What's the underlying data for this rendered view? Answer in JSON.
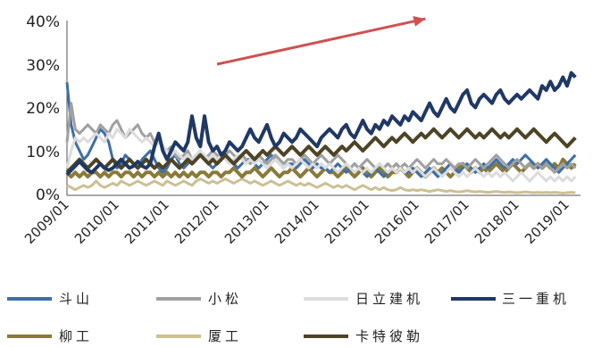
{
  "chart_data": {
    "type": "line",
    "title": "",
    "xlabel": "",
    "ylabel": "",
    "ylim": [
      0,
      40
    ],
    "y_ticks": [
      "0%",
      "10%",
      "20%",
      "30%",
      "40%"
    ],
    "x_ticks": [
      "2009/01",
      "2010/01",
      "2011/01",
      "2012/01",
      "2013/01",
      "2014/01",
      "2015/01",
      "2016/01",
      "2017/01",
      "2018/01",
      "2019/01"
    ],
    "x_range": [
      "2009-01",
      "2019-03"
    ],
    "grid": false,
    "legend_position": "bottom",
    "annotation": {
      "type": "arrow",
      "color": "#d05050",
      "from": [
        "2012-01",
        30
      ],
      "to": [
        "2016-03",
        40.5
      ]
    },
    "series": [
      {
        "name": "斗山",
        "color": "#3e6fa8",
        "width": 3,
        "values": [
          25.8,
          16,
          12,
          10,
          8,
          9,
          11,
          13,
          15,
          14,
          12,
          8,
          6,
          7,
          9,
          8,
          7,
          6,
          8,
          9,
          10,
          8,
          6,
          5,
          6,
          8,
          9,
          7,
          6,
          7,
          8,
          9,
          10,
          8,
          7,
          6,
          7,
          8,
          9,
          8,
          7,
          6,
          7,
          8,
          8,
          7,
          6,
          7,
          8,
          9,
          8,
          7,
          6,
          7,
          7,
          6,
          7,
          8,
          7,
          6,
          7,
          6,
          6,
          5,
          6,
          7,
          6,
          5,
          6,
          7,
          6,
          5,
          4,
          5,
          6,
          5,
          4,
          5,
          6,
          7,
          6,
          5,
          5,
          6,
          5,
          4,
          5,
          6,
          5,
          4,
          5,
          6,
          7,
          6,
          5,
          6,
          7,
          6,
          5,
          6,
          7,
          6,
          7,
          8,
          7,
          6,
          7,
          8,
          7,
          8,
          9,
          8,
          7,
          6,
          7,
          8,
          7,
          6,
          5,
          6,
          7,
          8,
          9
        ]
      },
      {
        "name": "小松",
        "color": "#a0a0a0",
        "width": 3,
        "values": [
          12,
          21,
          15,
          14,
          15,
          16,
          15,
          14,
          16,
          15,
          14,
          16,
          17,
          15,
          13,
          14,
          15,
          16,
          14,
          13,
          14,
          12,
          13,
          11,
          10,
          11,
          9,
          8,
          9,
          10,
          8,
          9,
          10,
          8,
          9,
          10,
          9,
          8,
          9,
          10,
          9,
          8,
          9,
          8,
          7,
          8,
          9,
          8,
          7,
          8,
          9,
          8,
          7,
          8,
          8,
          7,
          8,
          9,
          8,
          7,
          8,
          9,
          8,
          7,
          8,
          9,
          8,
          7,
          6,
          7,
          6,
          7,
          8,
          7,
          6,
          7,
          6,
          7,
          6,
          7,
          6,
          7,
          6,
          7,
          8,
          7,
          6,
          7,
          8,
          7,
          7,
          8,
          7,
          6,
          7,
          7,
          6,
          7,
          8,
          7,
          6,
          7,
          8,
          9,
          8,
          7,
          6,
          7,
          8,
          7,
          6,
          7,
          6,
          7,
          6,
          7,
          6,
          5,
          6,
          7,
          6,
          7,
          6
        ]
      },
      {
        "name": "日立建机",
        "color": "#dcdcdc",
        "width": 3,
        "values": [
          6,
          10,
          13,
          12,
          13,
          12,
          13,
          14,
          13,
          12,
          14,
          13,
          15,
          14,
          13,
          15,
          14,
          13,
          12,
          13,
          12,
          11,
          12,
          11,
          10,
          9,
          10,
          9,
          8,
          9,
          8,
          9,
          10,
          9,
          8,
          9,
          8,
          9,
          8,
          7,
          8,
          9,
          8,
          7,
          8,
          7,
          8,
          7,
          6,
          7,
          8,
          7,
          6,
          7,
          6,
          7,
          8,
          7,
          6,
          7,
          6,
          7,
          6,
          7,
          6,
          5,
          6,
          7,
          6,
          5,
          6,
          5,
          6,
          5,
          6,
          7,
          6,
          5,
          6,
          5,
          6,
          5,
          6,
          5,
          6,
          5,
          4,
          5,
          6,
          5,
          4,
          5,
          6,
          5,
          4,
          5,
          4,
          5,
          6,
          5,
          4,
          5,
          4,
          5,
          4,
          5,
          4,
          3,
          4,
          5,
          4,
          3,
          4,
          5,
          4,
          3,
          4,
          3,
          4,
          3,
          4,
          3,
          4
        ]
      },
      {
        "name": "三一重机",
        "color": "#1f3864",
        "width": 4,
        "values": [
          4.5,
          5.5,
          6.5,
          7.5,
          6.5,
          5.5,
          5,
          6,
          7,
          6,
          5.5,
          6,
          7,
          8,
          7,
          6,
          6.5,
          7.5,
          6.5,
          6,
          7,
          11,
          14,
          10,
          8,
          10,
          12,
          11,
          10,
          12,
          18,
          13,
          11,
          18,
          12,
          10,
          11,
          9,
          10,
          12,
          11,
          10,
          11,
          13,
          15,
          13,
          12,
          14,
          16,
          13,
          11,
          12,
          14,
          13,
          12,
          13,
          15,
          14,
          13,
          12,
          11,
          13,
          14,
          15,
          14,
          13,
          15,
          16,
          14,
          13,
          15,
          17,
          15,
          14,
          16,
          15,
          17,
          16,
          18,
          17,
          16,
          18,
          17,
          19,
          18,
          17,
          19,
          21,
          19,
          18,
          20,
          22,
          20,
          19,
          21,
          23,
          24,
          21,
          20,
          22,
          23,
          22,
          21,
          23,
          24,
          22,
          21,
          22,
          23,
          22,
          23,
          24,
          23,
          22,
          25,
          24,
          26,
          24,
          25,
          27,
          25,
          28,
          27
        ]
      },
      {
        "name": "柳工",
        "color": "#8a7a3a",
        "width": 4,
        "values": [
          5,
          4,
          5,
          4,
          5,
          4,
          5,
          5,
          4,
          5,
          4,
          5,
          5,
          4,
          5,
          5,
          4,
          5,
          4,
          5,
          5,
          4,
          5,
          4,
          5,
          4,
          5,
          4,
          5,
          4,
          5,
          4,
          5,
          5,
          4,
          5,
          5,
          4,
          5,
          5,
          6,
          5,
          4,
          5,
          5,
          6,
          5,
          4,
          5,
          6,
          5,
          4,
          5,
          5,
          6,
          5,
          4,
          5,
          6,
          5,
          4,
          5,
          6,
          5,
          5,
          4,
          5,
          6,
          5,
          4,
          5,
          6,
          5,
          4,
          5,
          6,
          5,
          4,
          5,
          5,
          6,
          5,
          4,
          5,
          6,
          5,
          4,
          5,
          6,
          5,
          6,
          5,
          4,
          5,
          6,
          7,
          6,
          5,
          6,
          5,
          6,
          5,
          6,
          7,
          6,
          5,
          6,
          7,
          6,
          5,
          6,
          7,
          6,
          7,
          6,
          7,
          6,
          7,
          6,
          8,
          7,
          6,
          7
        ]
      },
      {
        "name": "厦工",
        "color": "#ccc094",
        "width": 3,
        "values": [
          2,
          1.5,
          1,
          1.5,
          2,
          1.5,
          2,
          3,
          2,
          1.5,
          2,
          2.5,
          2,
          3,
          2.5,
          2,
          2.5,
          3,
          2.5,
          2,
          2.5,
          3,
          2.5,
          2,
          3,
          2.5,
          2,
          2.5,
          3,
          2.5,
          2,
          3,
          3.5,
          3,
          2.5,
          3,
          2.5,
          3,
          3.5,
          3,
          2.5,
          3,
          3.5,
          3,
          2.5,
          3,
          2.5,
          2,
          2.5,
          3,
          2.5,
          2,
          2.5,
          3,
          2.5,
          2,
          2.5,
          2,
          2.5,
          2,
          1.5,
          2,
          2.5,
          2,
          1.5,
          2,
          1.5,
          2,
          1.5,
          1,
          1.5,
          2,
          1.5,
          1,
          1.5,
          1,
          1.5,
          1,
          0.8,
          1,
          1.5,
          1,
          0.8,
          1,
          0.8,
          1,
          0.8,
          0.6,
          0.8,
          1,
          0.8,
          0.6,
          0.8,
          0.6,
          0.5,
          0.6,
          0.8,
          0.6,
          0.5,
          0.6,
          0.5,
          0.4,
          0.5,
          0.6,
          0.5,
          0.4,
          0.5,
          0.4,
          0.3,
          0.4,
          0.5,
          0.4,
          0.3,
          0.4,
          0.3,
          0.4,
          0.3,
          0.4,
          0.3,
          0.2,
          0.3,
          0.4,
          0.3
        ]
      },
      {
        "name": "卡特彼勒",
        "color": "#4d4425",
        "width": 4,
        "values": [
          5,
          6,
          7,
          8,
          7,
          6,
          7,
          8,
          7,
          6,
          7,
          8,
          7,
          6,
          7,
          8,
          7,
          6,
          7,
          8,
          7,
          6,
          7,
          6,
          7,
          8,
          7,
          6,
          7,
          8,
          7,
          8,
          9,
          8,
          7,
          8,
          7,
          8,
          9,
          8,
          7,
          8,
          9,
          10,
          9,
          8,
          9,
          10,
          9,
          10,
          11,
          10,
          9,
          10,
          11,
          10,
          9,
          10,
          11,
          10,
          9,
          10,
          11,
          10,
          9,
          10,
          11,
          10,
          11,
          12,
          11,
          10,
          11,
          12,
          13,
          12,
          11,
          12,
          13,
          12,
          13,
          14,
          13,
          12,
          13,
          14,
          13,
          14,
          15,
          14,
          13,
          14,
          15,
          14,
          13,
          14,
          15,
          14,
          13,
          14,
          13,
          14,
          15,
          14,
          13,
          14,
          13,
          14,
          15,
          14,
          13,
          14,
          15,
          14,
          13,
          12,
          13,
          14,
          13,
          12,
          11,
          12,
          13
        ]
      }
    ]
  }
}
